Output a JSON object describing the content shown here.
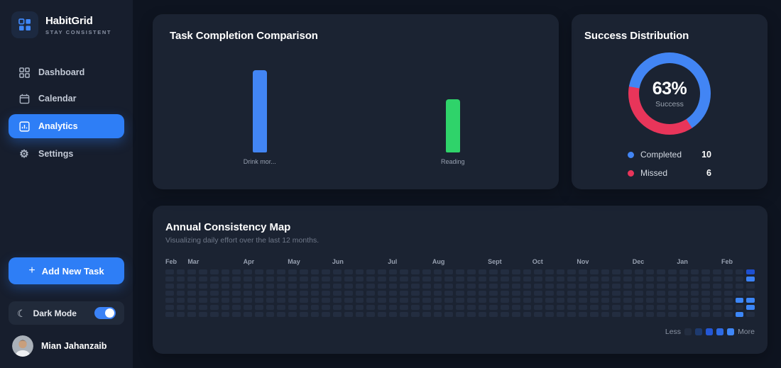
{
  "sidebar": {
    "logo": {
      "title": "HabitGrid",
      "tagline": "STAY CONSISTENT"
    },
    "nav": [
      {
        "label": "Dashboard",
        "icon": "dashboard-icon",
        "active": false
      },
      {
        "label": "Calendar",
        "icon": "calendar-icon",
        "active": false
      },
      {
        "label": "Analytics",
        "icon": "analytics-icon",
        "active": true
      },
      {
        "label": "Settings",
        "icon": "settings-icon",
        "active": false
      }
    ],
    "add_task_label": "Add New Task",
    "dark_mode": {
      "label": "Dark Mode",
      "enabled": true
    },
    "user": {
      "name": "Mian Jahanzaib"
    }
  },
  "cards": {
    "comparison": {
      "title": "Task Completion Comparison"
    },
    "distribution": {
      "title": "Success Distribution",
      "center_value": "63%",
      "center_label": "Success",
      "legend": [
        {
          "label": "Completed",
          "value": "10",
          "color": "#4285f4"
        },
        {
          "label": "Missed",
          "value": "6",
          "color": "#e8355a"
        }
      ]
    },
    "consistency": {
      "title": "Annual Consistency Map",
      "subtitle": "Visualizing daily effort over the last 12 months.",
      "legend_less": "Less",
      "legend_more": "More"
    }
  },
  "chart_data": [
    {
      "type": "bar",
      "title": "Task Completion Comparison",
      "categories": [
        "Drink mor...",
        "Reading"
      ],
      "values": [
        100,
        65
      ],
      "value_units": "relative bar height % (no axis shown in UI)",
      "colors": [
        "#4285f4",
        "#2fd36a"
      ],
      "x_positions_pct": [
        24.2,
        76.1
      ],
      "grid": false
    },
    {
      "type": "pie",
      "title": "Success Distribution",
      "donut": true,
      "labels": [
        "Completed",
        "Missed"
      ],
      "values": [
        10,
        6
      ],
      "percent_success": 63,
      "colors": [
        "#4285f4",
        "#e8355a"
      ],
      "start_angle_deg": 280,
      "center_text": "63% Success",
      "legend_position": "bottom"
    },
    {
      "type": "heatmap",
      "title": "Annual Consistency Map",
      "months": [
        "Feb",
        "Mar",
        "Apr",
        "May",
        "Jun",
        "Jul",
        "Aug",
        "Sept",
        "Oct",
        "Nov",
        "Dec",
        "Jan",
        "Feb"
      ],
      "month_cols": [
        0,
        2,
        7,
        11,
        15,
        20,
        24,
        29,
        33,
        37,
        42,
        46,
        50
      ],
      "weeks": 53,
      "days_per_week": 7,
      "base_color": "#232d40",
      "active_cells": [
        {
          "col": 51,
          "row": 4,
          "color": "#3c86f7"
        },
        {
          "col": 51,
          "row": 6,
          "color": "#3c86f7"
        },
        {
          "col": 52,
          "row": 0,
          "color": "#1e4fd0"
        },
        {
          "col": 52,
          "row": 1,
          "color": "#3b82f6"
        },
        {
          "col": 52,
          "row": 4,
          "color": "#3c86f7"
        },
        {
          "col": 52,
          "row": 5,
          "color": "#3c86f7"
        }
      ],
      "legend_levels": [
        "#232d40",
        "#1e3a6e",
        "#2457d6",
        "#2e6be5",
        "#3f87f8"
      ]
    }
  ],
  "colors": {
    "page_bg": "#0e1420",
    "sidebar_bg": "#171e2d",
    "card_bg": "#1b2332",
    "accent_blue": "#2e7ef6",
    "bar_blue": "#4285f4",
    "bar_green": "#2fd36a",
    "missed_red": "#e8355a"
  }
}
